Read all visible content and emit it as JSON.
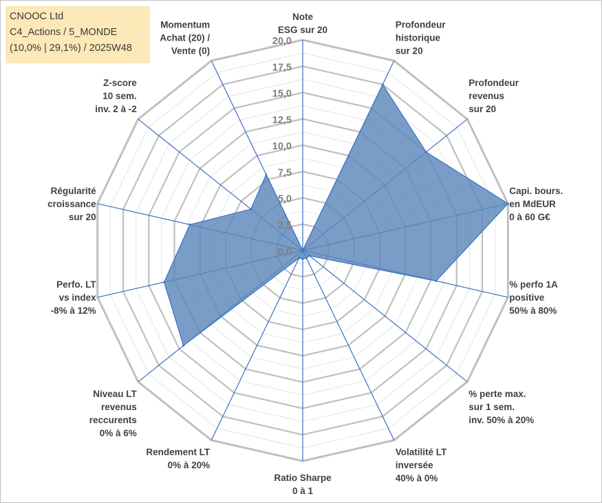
{
  "header": {
    "line1": "CNOOC Ltd",
    "line2": "C4_Actions / 5_MONDE",
    "line3": "(10,0% | 29,1%) / 2025W48"
  },
  "chart_data": {
    "type": "radar",
    "title": "CNOOC Ltd",
    "rmin": 0,
    "rmax": 20,
    "ticks": [
      "0,0",
      "2,5",
      "5,0",
      "7,5",
      "10,0",
      "12,5",
      "15,0",
      "17,5",
      "20,0"
    ],
    "colors": {
      "fill": "#5b87ba",
      "line": "#3a6fc4",
      "grid": "#bfbfbf",
      "spoke": "#3a6fc4"
    },
    "axes": [
      {
        "name": "Note ESG sur 20",
        "label_lines": [
          "Note",
          "ESG sur 20"
        ],
        "value": 0
      },
      {
        "name": "Profondeur historique sur 20",
        "label_lines": [
          "Profondeur",
          "historique",
          "sur 20"
        ],
        "value": 17.5
      },
      {
        "name": "Profondeur revenus sur 20",
        "label_lines": [
          "Profondeur",
          "revenus",
          "sur 20"
        ],
        "value": 15
      },
      {
        "name": "Capi. bours. en MdEUR 0 à 60 G€",
        "label_lines": [
          "Capi. bours.",
          "en MdEUR",
          "0 à 60 G€"
        ],
        "value": 20
      },
      {
        "name": "% perfo 1A positive 50% à 80%",
        "label_lines": [
          "% perfo 1A",
          "positive",
          "50% à 80%"
        ],
        "value": 13
      },
      {
        "name": "% perte max. sur 1 sem. inv. 50% à 20%",
        "label_lines": [
          "% perte max.",
          "sur 1 sem.",
          "inv. 50% à 20%"
        ],
        "value": 0.8
      },
      {
        "name": "Volatilité LT inversée 40% à 0%",
        "label_lines": [
          "Volatilité LT",
          "inversée",
          "40% à 0%"
        ],
        "value": 0.8
      },
      {
        "name": "Ratio Sharpe 0 à 1",
        "label_lines": [
          "Ratio Sharpe",
          "0 à 1"
        ],
        "value": 0.8
      },
      {
        "name": "Rendement LT 0% à 20%",
        "label_lines": [
          "Rendement LT",
          "0% à 20%"
        ],
        "value": 0.8
      },
      {
        "name": "Niveau LT revenus reccurents 0% à 6%",
        "label_lines": [
          "Niveau LT",
          "revenus",
          "reccurents",
          "0% à 6%"
        ],
        "value": 14.5
      },
      {
        "name": "Perfo. LT vs index -8% à 12%",
        "label_lines": [
          "Perfo. LT",
          "vs index",
          "-8% à 12%"
        ],
        "value": 13.5
      },
      {
        "name": "Régularité croissance sur 20",
        "label_lines": [
          "Régularité",
          "croissance",
          "sur 20"
        ],
        "value": 11
      },
      {
        "name": "Z-score 10 sem. inv. 2 à -2",
        "label_lines": [
          "Z-score",
          "10 sem.",
          "inv. 2 à -2"
        ],
        "value": 6.3
      },
      {
        "name": "Momentum Achat (20) / Vente (0)",
        "label_lines": [
          "Momentum",
          "Achat (20) /",
          "Vente (0)"
        ],
        "value": 8
      }
    ]
  }
}
